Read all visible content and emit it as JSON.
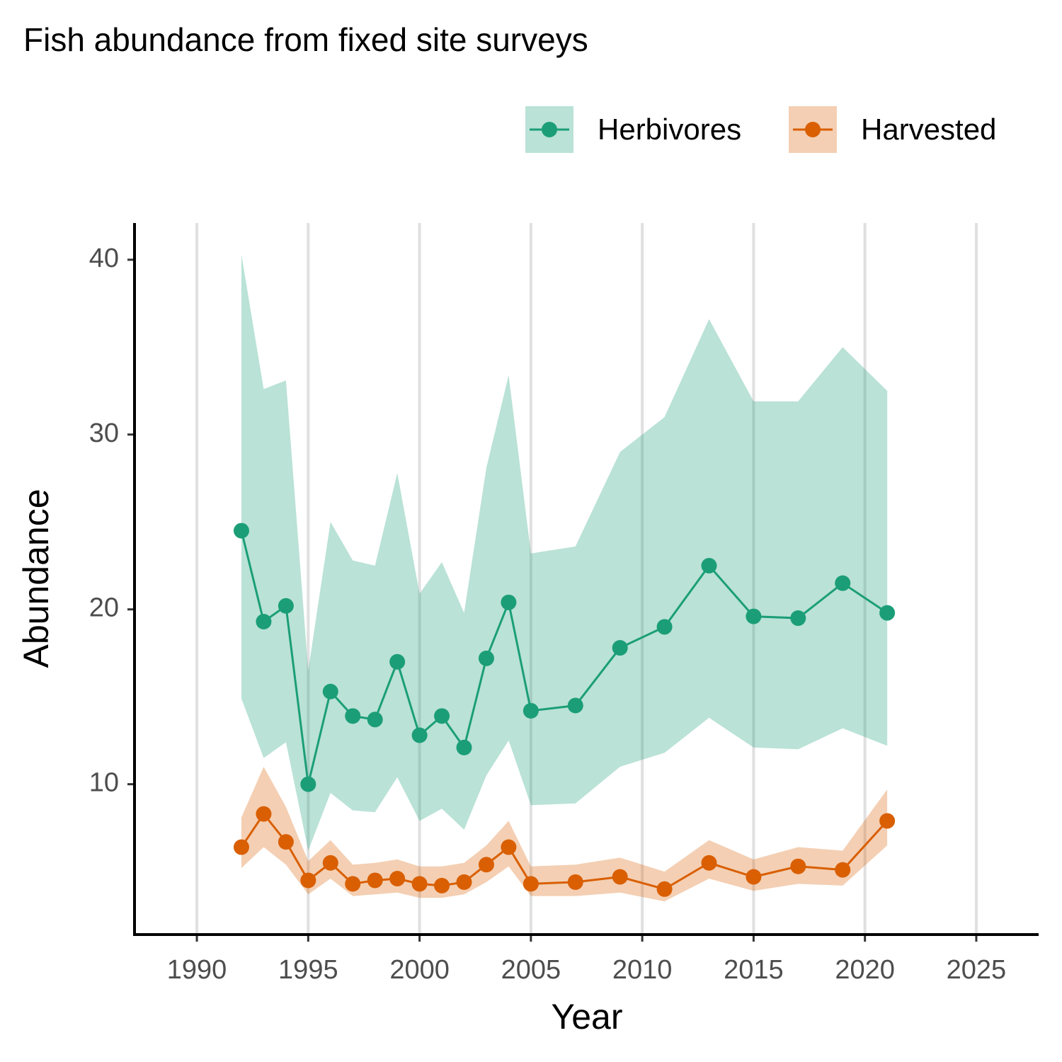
{
  "chart_data": {
    "type": "line",
    "title": "Fish abundance from fixed site surveys",
    "x_label": "Year",
    "y_label": "Abundance",
    "x": [
      1992,
      1993,
      1994,
      1995,
      1996,
      1997,
      1998,
      1999,
      2000,
      2001,
      2002,
      2003,
      2004,
      2005,
      2007,
      2009,
      2011,
      2013,
      2015,
      2017,
      2019,
      2021
    ],
    "series": [
      {
        "name": "Herbivores",
        "color": "#1b9e77",
        "values": [
          24.5,
          19.3,
          20.2,
          10.0,
          15.3,
          13.9,
          13.7,
          17.0,
          12.8,
          13.9,
          12.1,
          17.2,
          20.4,
          14.2,
          14.5,
          17.8,
          19.0,
          22.5,
          19.6,
          19.5,
          21.5,
          19.8
        ],
        "upper": [
          40.3,
          32.6,
          33.1,
          16.5,
          25.0,
          22.8,
          22.5,
          27.8,
          20.9,
          22.7,
          19.8,
          28.1,
          33.4,
          23.2,
          23.6,
          29.0,
          31.0,
          36.6,
          31.9,
          31.9,
          35.0,
          32.5
        ],
        "lower": [
          14.9,
          11.5,
          12.4,
          6.2,
          9.5,
          8.5,
          8.4,
          10.4,
          7.9,
          8.6,
          7.4,
          10.5,
          12.5,
          8.8,
          8.9,
          11.0,
          11.8,
          13.8,
          12.1,
          12.0,
          13.2,
          12.2
        ]
      },
      {
        "name": "Harvested",
        "color": "#d95f02",
        "values": [
          6.4,
          8.3,
          6.7,
          4.5,
          5.5,
          4.3,
          4.5,
          4.6,
          4.3,
          4.2,
          4.4,
          5.4,
          6.4,
          4.3,
          4.4,
          4.7,
          4.0,
          5.5,
          4.7,
          5.3,
          5.1,
          7.9
        ],
        "upper": [
          8.1,
          11.0,
          8.7,
          5.6,
          6.8,
          5.4,
          5.5,
          5.7,
          5.3,
          5.3,
          5.5,
          6.5,
          7.9,
          5.3,
          5.4,
          5.8,
          5.0,
          6.8,
          5.7,
          6.4,
          6.2,
          9.7
        ],
        "lower": [
          5.2,
          6.4,
          5.4,
          3.7,
          4.6,
          3.6,
          3.7,
          3.8,
          3.5,
          3.5,
          3.7,
          4.4,
          5.3,
          3.6,
          3.6,
          3.8,
          3.3,
          4.6,
          3.9,
          4.3,
          4.2,
          6.5
        ]
      }
    ],
    "xlim": [
      1987.2,
      2027.8
    ],
    "xticks": [
      1990,
      1995,
      2000,
      2005,
      2010,
      2015,
      2020,
      2025
    ],
    "ylim": [
      1.4,
      42.1
    ],
    "yticks": [
      10,
      20,
      30,
      40
    ],
    "grid": "x",
    "legend": "top"
  }
}
